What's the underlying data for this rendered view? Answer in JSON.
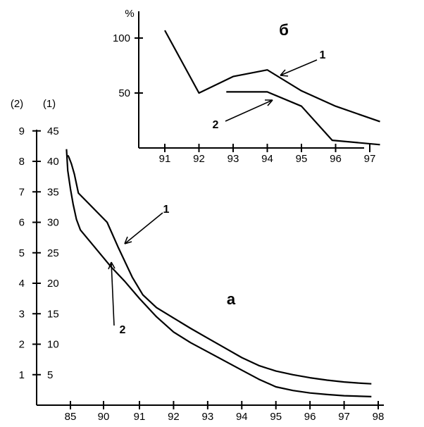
{
  "chart_data": [
    {
      "type": "line",
      "panel_label": "а",
      "x_ticks": [
        "85",
        "90",
        "91",
        "92",
        "93",
        "94",
        "95",
        "96",
        "97",
        "98"
      ],
      "y_scale_1_label": "(1)",
      "y_scale_2_label": "(2)",
      "y_scale_1_ticks": [
        "5",
        "10",
        "15",
        "20",
        "25",
        "30",
        "35",
        "40",
        "45"
      ],
      "y_scale_2_ticks": [
        "1",
        "2",
        "3",
        "4",
        "5",
        "6",
        "7",
        "8",
        "9"
      ],
      "y_scale_1_range": [
        0,
        50
      ],
      "y_scale_2_range": [
        0,
        10
      ],
      "series": [
        {
          "label": "1",
          "axis": "(1)",
          "points": [
            [
              84.6,
              41
            ],
            [
              84.75,
              40.7
            ],
            [
              85.15,
              39.6
            ],
            [
              85.6,
              37.9
            ],
            [
              86.2,
              34.8
            ],
            [
              90.1,
              30
            ],
            [
              90.4,
              26
            ],
            [
              90.8,
              21
            ],
            [
              91.1,
              18.1
            ],
            [
              91.5,
              16
            ],
            [
              92.0,
              14.3
            ],
            [
              92.5,
              12.6
            ],
            [
              93.0,
              11.0
            ],
            [
              93.5,
              9.4
            ],
            [
              94.0,
              7.8
            ],
            [
              94.5,
              6.5
            ],
            [
              95.0,
              5.6
            ],
            [
              95.5,
              5.0
            ],
            [
              96.0,
              4.5
            ],
            [
              96.5,
              4.1
            ],
            [
              97.0,
              3.8
            ],
            [
              97.5,
              3.6
            ],
            [
              97.8,
              3.5
            ]
          ]
        },
        {
          "label": "2",
          "axis": "(2)",
          "points": [
            [
              84.4,
              8.4
            ],
            [
              84.6,
              7.7
            ],
            [
              85.0,
              7.1
            ],
            [
              85.4,
              6.6
            ],
            [
              85.9,
              6.1
            ],
            [
              86.5,
              5.75
            ],
            [
              90.2,
              4.55
            ],
            [
              90.6,
              4.05
            ],
            [
              91.0,
              3.5
            ],
            [
              91.5,
              2.9
            ],
            [
              92.0,
              2.4
            ],
            [
              92.5,
              2.05
            ],
            [
              93.0,
              1.75
            ],
            [
              93.5,
              1.45
            ],
            [
              94.0,
              1.15
            ],
            [
              94.5,
              0.85
            ],
            [
              95.0,
              0.6
            ],
            [
              95.5,
              0.48
            ],
            [
              96.0,
              0.4
            ],
            [
              96.5,
              0.35
            ],
            [
              97.0,
              0.31
            ],
            [
              97.8,
              0.28
            ]
          ]
        }
      ]
    },
    {
      "type": "line",
      "panel_label": "б",
      "y_unit": "%",
      "x_ticks": [
        "91",
        "92",
        "93",
        "94",
        "95",
        "96",
        "97"
      ],
      "y_ticks": [
        "100",
        "50"
      ],
      "series": [
        {
          "label": "1",
          "points": [
            [
              91.0,
              107
            ],
            [
              92.0,
              50
            ],
            [
              93.0,
              65
            ],
            [
              94.0,
              71
            ],
            [
              95.0,
              52
            ],
            [
              96.0,
              38
            ],
            [
              97.3,
              24
            ]
          ]
        },
        {
          "label": "2",
          "points": [
            [
              92.8,
              51
            ],
            [
              94.0,
              51
            ],
            [
              95.0,
              38
            ],
            [
              95.9,
              7
            ],
            [
              97.3,
              3
            ]
          ]
        }
      ]
    }
  ]
}
